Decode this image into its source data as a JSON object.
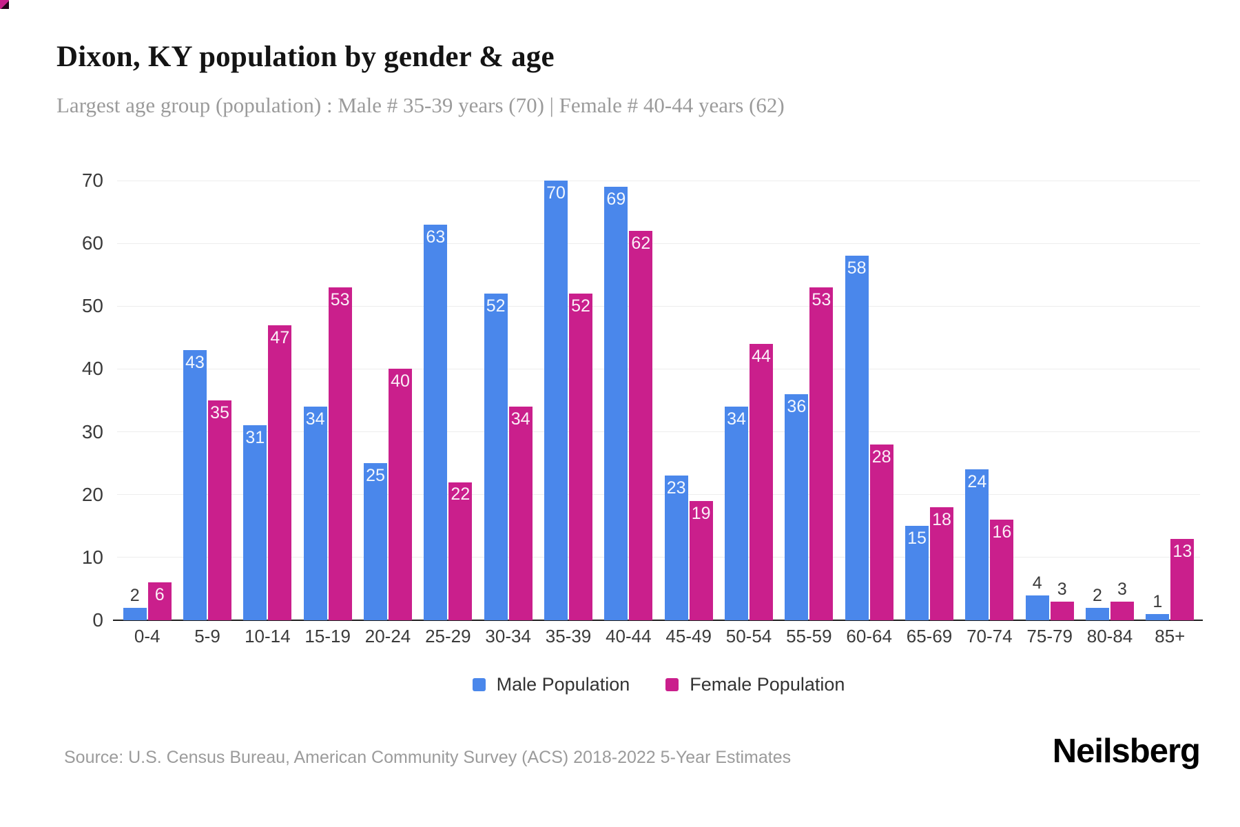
{
  "header": {
    "title": "Dixon, KY population by gender & age",
    "subtitle": "Largest age group (population) : Male # 35-39 years (70) | Female # 40-44 years (62)"
  },
  "chart_data": {
    "type": "bar",
    "title": "Dixon, KY population by gender & age",
    "categories": [
      "0-4",
      "5-9",
      "10-14",
      "15-19",
      "20-24",
      "25-29",
      "30-34",
      "35-39",
      "40-44",
      "45-49",
      "50-54",
      "55-59",
      "60-64",
      "65-69",
      "70-74",
      "75-79",
      "80-84",
      "85+"
    ],
    "series": [
      {
        "name": "Male Population",
        "color": "#4A87EB",
        "values": [
          2,
          43,
          31,
          34,
          25,
          63,
          52,
          70,
          69,
          23,
          34,
          36,
          58,
          15,
          24,
          4,
          2,
          1
        ]
      },
      {
        "name": "Female Population",
        "color": "#CA1F8C",
        "values": [
          6,
          35,
          47,
          53,
          40,
          22,
          34,
          52,
          62,
          19,
          44,
          53,
          28,
          18,
          16,
          3,
          3,
          13
        ]
      }
    ],
    "xlabel": "",
    "ylabel": "",
    "ylim": [
      0,
      70
    ],
    "yticks": [
      0,
      10,
      20,
      30,
      40,
      50,
      60,
      70
    ],
    "grid": true,
    "legend_position": "bottom",
    "value_labels": true,
    "value_label_inside_min": 6,
    "colors": {
      "grid": "#ededed",
      "axis_line": "#1f1f1f",
      "tick_text": "#3b3b3b",
      "label_inside": "#ffffff",
      "label_outside": "#3b3b3b"
    }
  },
  "footer": {
    "source": "Source: U.S. Census Bureau, American Community Survey (ACS) 2018-2022 5-Year Estimates",
    "brand": "Neilsberg"
  }
}
